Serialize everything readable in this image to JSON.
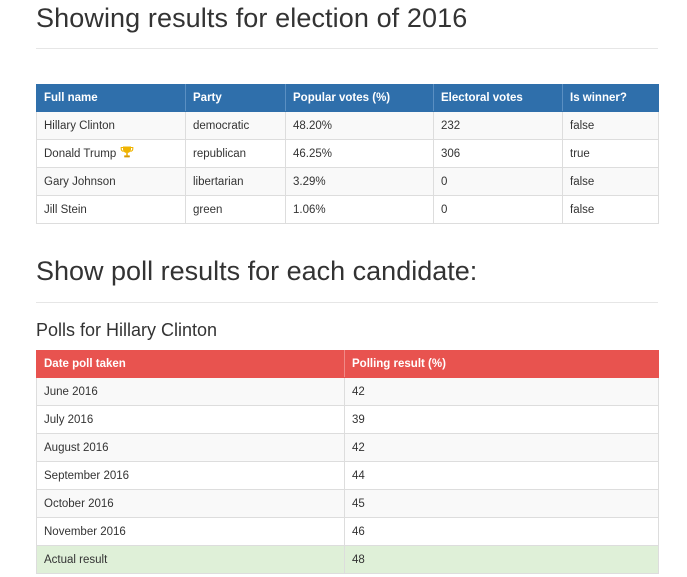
{
  "page": {
    "title": "Showing results for election of 2016",
    "poll_section_title": "Show poll results for each candidate:"
  },
  "results_table": {
    "headers": [
      "Full name",
      "Party",
      "Popular votes (%)",
      "Electoral votes",
      "Is winner?"
    ],
    "rows": [
      {
        "name": "Hillary Clinton",
        "party": "democratic",
        "popular": "48.20%",
        "electoral": "232",
        "winner": "false",
        "trophy": false
      },
      {
        "name": "Donald Trump",
        "party": "republican",
        "popular": "46.25%",
        "electoral": "306",
        "winner": "true",
        "trophy": true
      },
      {
        "name": "Gary Johnson",
        "party": "libertarian",
        "popular": "3.29%",
        "electoral": "0",
        "winner": "false",
        "trophy": false
      },
      {
        "name": "Jill Stein",
        "party": "green",
        "popular": "1.06%",
        "electoral": "0",
        "winner": "false",
        "trophy": false
      }
    ],
    "header_color": "#2f6fab",
    "trophy_icon": "trophy-icon"
  },
  "polls": {
    "title": "Polls for Hillary Clinton",
    "headers": [
      "Date poll taken",
      "Polling result (%)"
    ],
    "rows": [
      {
        "date": "June 2016",
        "result": "42"
      },
      {
        "date": "July 2016",
        "result": "39"
      },
      {
        "date": "August 2016",
        "result": "42"
      },
      {
        "date": "September 2016",
        "result": "44"
      },
      {
        "date": "October 2016",
        "result": "45"
      },
      {
        "date": "November 2016",
        "result": "46"
      },
      {
        "date": "Actual result",
        "result": "48",
        "highlight": true
      }
    ],
    "header_color": "#e8534f",
    "highlight_color": "#dff0d8"
  }
}
